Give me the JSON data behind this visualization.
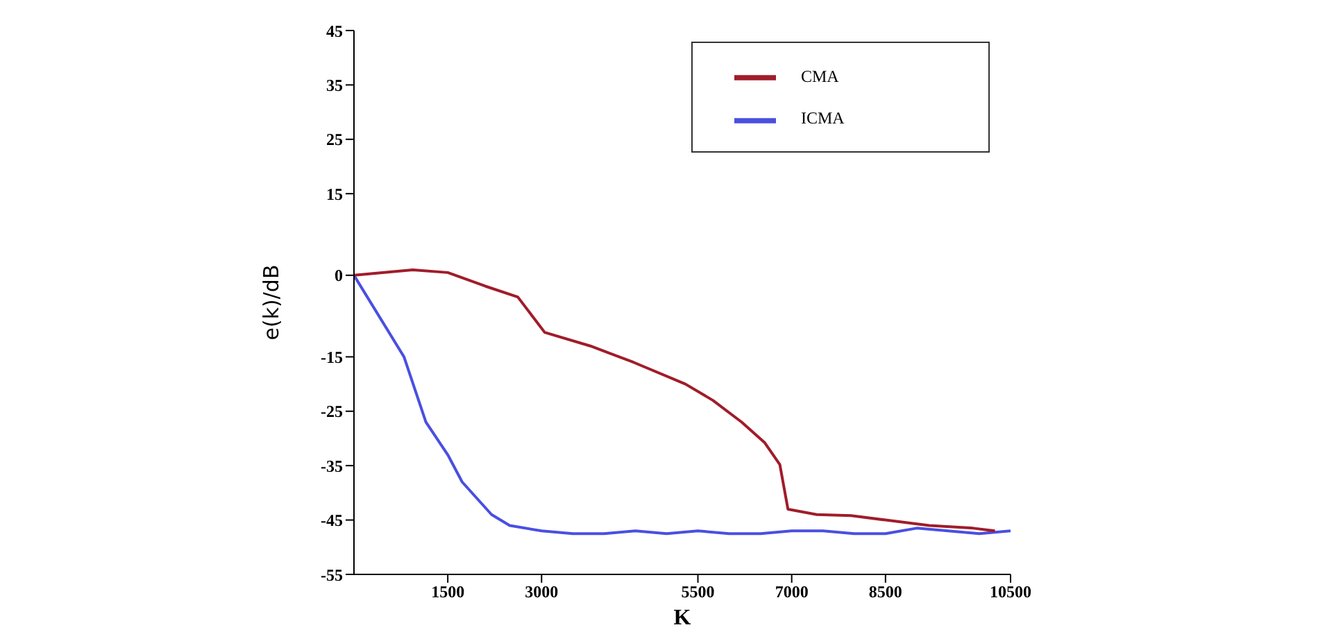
{
  "chart_data": {
    "type": "line",
    "xlabel": "K",
    "ylabel": "e(k)/dB",
    "xlim": [
      0,
      10500
    ],
    "xticks": [
      1500,
      3000,
      5500,
      7000,
      8500,
      10500
    ],
    "ylim": [
      -55,
      45
    ],
    "yticks": [
      45,
      35,
      25,
      15,
      0,
      -15,
      -25,
      -35,
      -45,
      -55
    ],
    "grid": false,
    "legend": "top right",
    "marker": "none",
    "line_style": "solid",
    "series": [
      {
        "name": "ICMA",
        "color": "#4a4fe0",
        "x": [
          0,
          800,
          1150,
          1500,
          1730,
          2200,
          2490,
          3000,
          3500,
          4000,
          4500,
          5000,
          5500,
          6000,
          6500,
          7000,
          7500,
          8000,
          8500,
          9000,
          9500,
          10000,
          10500
        ],
        "values": [
          0,
          -15,
          -27,
          -33,
          -38,
          -44,
          -46,
          -47,
          -47.5,
          -47.5,
          -47,
          -47.5,
          -47,
          -47.5,
          -47.5,
          -47,
          -47,
          -47.5,
          -47.5,
          -46.5,
          -47,
          -47.5,
          -47
        ]
      },
      {
        "name": "CMA",
        "color": "#a01c2a",
        "x": [
          0,
          940,
          1500,
          2100,
          2620,
          3050,
          3780,
          4470,
          5300,
          5740,
          6200,
          6570,
          6810,
          6940,
          7400,
          7950,
          8500,
          9200,
          9900,
          10250
        ],
        "values": [
          0,
          1,
          0.5,
          -2,
          -4,
          -10.5,
          -13,
          -16,
          -20,
          -23,
          -27,
          -30.8,
          -34.8,
          -43,
          -44,
          -44.2,
          -45,
          -46,
          -46.5,
          -47
        ]
      }
    ]
  }
}
